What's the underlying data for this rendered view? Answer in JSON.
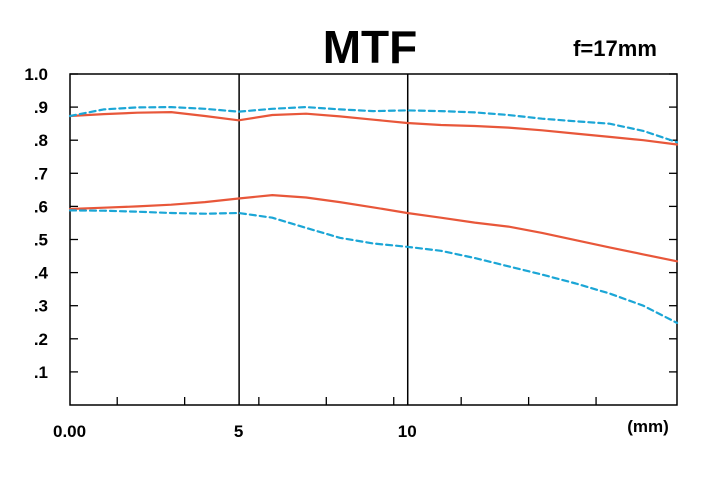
{
  "chart_data": {
    "type": "line",
    "title": "MTF",
    "subtitle": "f=17mm",
    "xlabel": "",
    "ylabel": "",
    "xlim": [
      0,
      18
    ],
    "ylim": [
      0,
      1.0
    ],
    "x_ticks": [
      {
        "value": 0,
        "label": "0.00"
      },
      {
        "value": 5,
        "label": "5"
      },
      {
        "value": 10,
        "label": "10"
      }
    ],
    "x_unit": "(mm)",
    "x_minor_ticks": [
      1.4,
      3.4,
      5.6,
      7.6,
      9.6,
      11.6,
      13.6,
      15.6
    ],
    "vertical_lines": [
      5,
      10
    ],
    "y_ticks": [
      {
        "value": 1.0,
        "label": "1.0"
      },
      {
        "value": 0.9,
        "label": ".9"
      },
      {
        "value": 0.8,
        "label": ".8"
      },
      {
        "value": 0.7,
        "label": ".7"
      },
      {
        "value": 0.6,
        "label": ".6"
      },
      {
        "value": 0.5,
        "label": ".5"
      },
      {
        "value": 0.4,
        "label": ".4"
      },
      {
        "value": 0.3,
        "label": ".3"
      },
      {
        "value": 0.2,
        "label": ".2"
      },
      {
        "value": 0.1,
        "label": ".1"
      }
    ],
    "grid": false,
    "series": [
      {
        "color": "#e8573a",
        "dash": false,
        "x": [
          0,
          1,
          2,
          3,
          4,
          5,
          6,
          7,
          8,
          9,
          10,
          11,
          12,
          13,
          14,
          15,
          16,
          17,
          18
        ],
        "y": [
          0.873,
          0.879,
          0.883,
          0.885,
          0.873,
          0.86,
          0.876,
          0.88,
          0.872,
          0.862,
          0.852,
          0.846,
          0.843,
          0.838,
          0.83,
          0.82,
          0.81,
          0.8,
          0.787
        ]
      },
      {
        "color": "#1ba6d6",
        "dash": true,
        "x": [
          0,
          1,
          2,
          3,
          4,
          5,
          6,
          7,
          8,
          9,
          10,
          11,
          12,
          13,
          14,
          15,
          16,
          17,
          18
        ],
        "y": [
          0.873,
          0.893,
          0.899,
          0.9,
          0.895,
          0.886,
          0.895,
          0.9,
          0.893,
          0.888,
          0.89,
          0.888,
          0.884,
          0.876,
          0.865,
          0.857,
          0.85,
          0.828,
          0.794
        ]
      },
      {
        "color": "#e8573a",
        "dash": false,
        "x": [
          0,
          1,
          2,
          3,
          4,
          5,
          6,
          7,
          8,
          9,
          10,
          11,
          12,
          13,
          14,
          15,
          16,
          17,
          18
        ],
        "y": [
          0.592,
          0.596,
          0.6,
          0.605,
          0.613,
          0.624,
          0.634,
          0.627,
          0.613,
          0.597,
          0.58,
          0.566,
          0.551,
          0.539,
          0.52,
          0.498,
          0.476,
          0.455,
          0.434
        ]
      },
      {
        "color": "#1ba6d6",
        "dash": true,
        "x": [
          0,
          1,
          2,
          3,
          4,
          5,
          6,
          7,
          8,
          9,
          10,
          11,
          12,
          13,
          14,
          15,
          16,
          17,
          18
        ],
        "y": [
          0.588,
          0.587,
          0.584,
          0.58,
          0.578,
          0.58,
          0.566,
          0.535,
          0.505,
          0.488,
          0.478,
          0.466,
          0.444,
          0.419,
          0.394,
          0.367,
          0.337,
          0.3,
          0.248
        ]
      }
    ]
  }
}
